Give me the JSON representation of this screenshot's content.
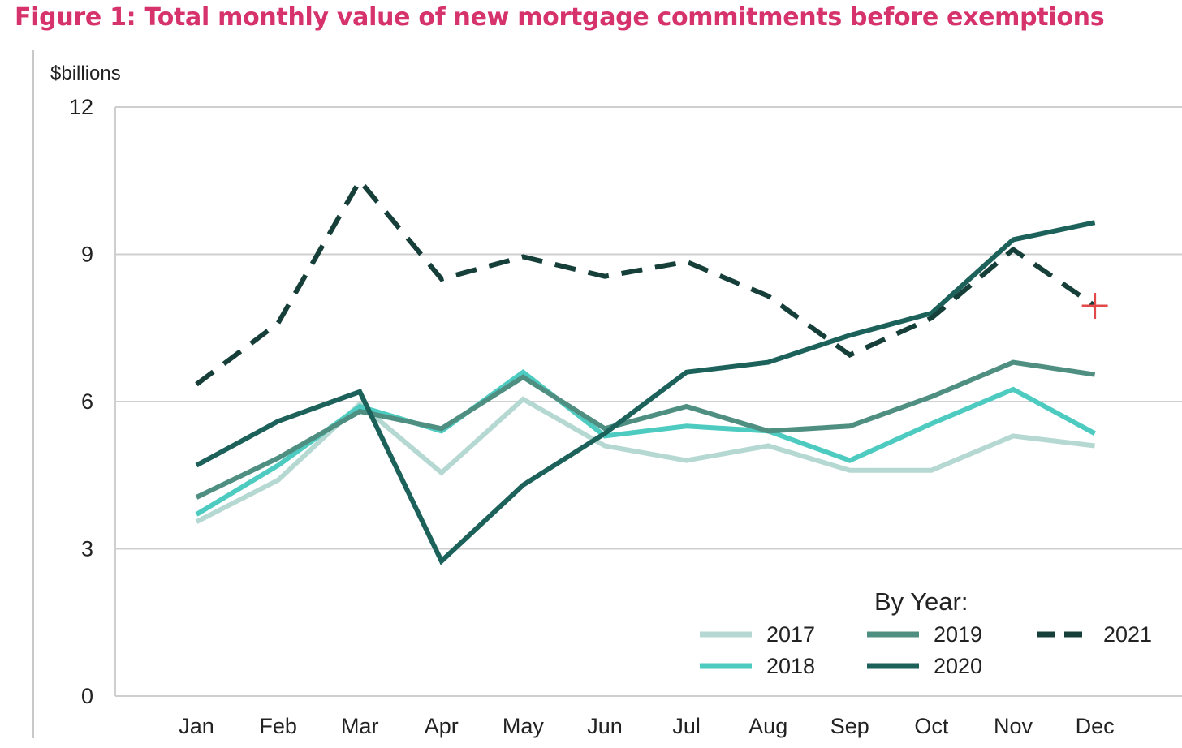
{
  "figure_title": "Figure 1:  Total monthly value of new mortgage commitments before exemptions",
  "chart_data": {
    "type": "line",
    "ylabel": "$billions",
    "ylim": [
      0,
      12
    ],
    "yticks": [
      0,
      3,
      6,
      9,
      12
    ],
    "grid": "horizontal",
    "categories": [
      "Jan",
      "Feb",
      "Mar",
      "Apr",
      "May",
      "Jun",
      "Jul",
      "Aug",
      "Sep",
      "Oct",
      "Nov",
      "Dec"
    ],
    "legend": {
      "title": "By Year:",
      "position": "bottom-right"
    },
    "series": [
      {
        "name": "2017",
        "color": "#b5d9d2",
        "dashed": false,
        "values": [
          3.55,
          4.4,
          5.95,
          4.55,
          6.05,
          5.1,
          4.8,
          5.1,
          4.6,
          4.6,
          5.3,
          5.1
        ]
      },
      {
        "name": "2018",
        "color": "#4ecbc0",
        "dashed": false,
        "values": [
          3.7,
          4.7,
          5.9,
          5.4,
          6.6,
          5.3,
          5.5,
          5.4,
          4.8,
          5.55,
          6.25,
          5.35
        ]
      },
      {
        "name": "2019",
        "color": "#4f8f82",
        "dashed": false,
        "values": [
          4.05,
          4.85,
          5.8,
          5.45,
          6.5,
          5.45,
          5.9,
          5.4,
          5.5,
          6.1,
          6.8,
          6.55
        ]
      },
      {
        "name": "2020",
        "color": "#1c625b",
        "dashed": false,
        "values": [
          4.7,
          5.6,
          6.2,
          2.75,
          4.3,
          5.35,
          6.6,
          6.8,
          7.35,
          7.8,
          9.3,
          9.65
        ]
      },
      {
        "name": "2021",
        "color": "#163f3a",
        "dashed": true,
        "values": [
          6.35,
          7.6,
          10.5,
          8.5,
          8.95,
          8.55,
          8.85,
          8.15,
          6.95,
          7.7,
          9.1,
          7.95
        ]
      }
    ],
    "annotations": [
      {
        "type": "marker",
        "symbol": "+",
        "color": "#e24a4a",
        "x": "Dec",
        "y": 7.95
      }
    ]
  }
}
